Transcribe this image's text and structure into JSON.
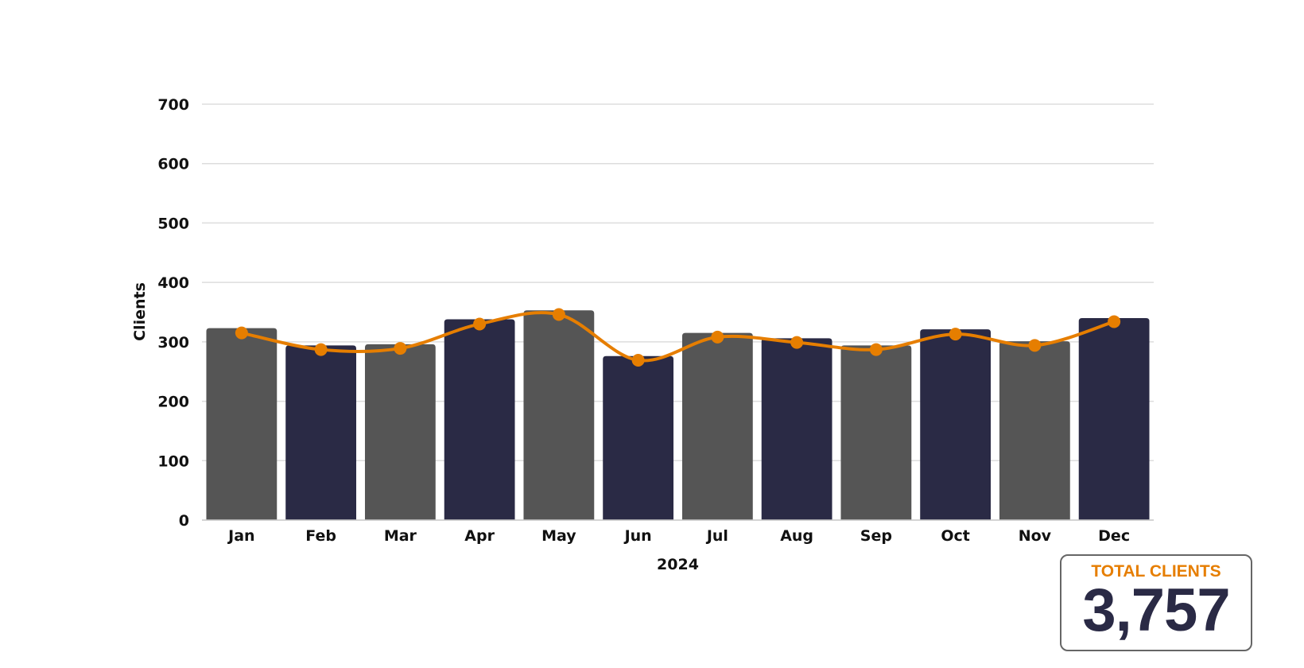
{
  "chart_data": {
    "type": "bar",
    "categories": [
      "Jan",
      "Feb",
      "Mar",
      "Apr",
      "May",
      "Jun",
      "Jul",
      "Aug",
      "Sep",
      "Oct",
      "Nov",
      "Dec"
    ],
    "series": [
      {
        "type": "bar",
        "values": [
          323,
          294,
          296,
          338,
          353,
          276,
          315,
          306,
          294,
          321,
          301,
          340
        ]
      },
      {
        "type": "line",
        "smooth": true,
        "values": [
          315,
          287,
          289,
          330,
          346,
          269,
          308,
          299,
          287,
          313,
          294,
          334
        ]
      }
    ],
    "bar_colors": [
      "#555555",
      "#2a2a45"
    ],
    "line_color": "#e67e00",
    "xlabel": "2024",
    "ylabel": "Clients",
    "ylim": [
      0,
      700
    ],
    "yticks": [
      0,
      100,
      200,
      300,
      400,
      500,
      600,
      700
    ],
    "grid": true
  },
  "summary": {
    "label": "TOTAL CLIENTS",
    "value": "3,757"
  }
}
